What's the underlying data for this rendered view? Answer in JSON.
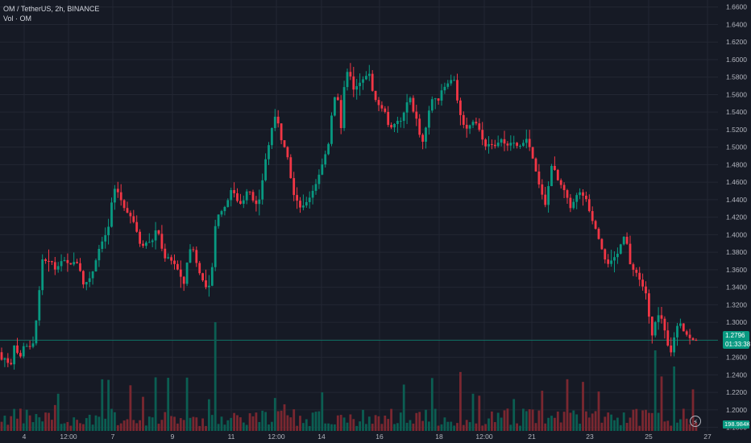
{
  "legend": {
    "symbol_line": "OM / TetherUS, 2h, BINANCE",
    "volume_line": "Vol · OM"
  },
  "price_tag": {
    "price": "1.2796",
    "countdown": "01:33:38"
  },
  "volume_tag": "198.984K",
  "colors": {
    "background": "#161a25",
    "grid": "#232733",
    "up": "#089981",
    "down": "#f23645",
    "up_volume": "#0b5e52",
    "down_volume": "#7a2730",
    "axis_text": "#b2b5be",
    "last_price_line": "#089981"
  },
  "icons": {
    "replay": "bolt-icon"
  },
  "chart_data": {
    "type": "candlestick",
    "symbol": "OM / TetherUS",
    "interval": "2h",
    "exchange": "BINANCE",
    "y_ticks": [
      "1.6600",
      "1.6400",
      "1.6200",
      "1.6000",
      "1.5800",
      "1.5600",
      "1.5400",
      "1.5200",
      "1.5000",
      "1.4800",
      "1.4600",
      "1.4400",
      "1.4200",
      "1.4000",
      "1.3800",
      "1.3600",
      "1.3400",
      "1.3200",
      "1.3000",
      "1.2800",
      "1.2600",
      "1.2400",
      "1.2200",
      "1.2000",
      "1.1800"
    ],
    "ylim": [
      1.176,
      1.668
    ],
    "x_ticks": [
      "4",
      "12:00",
      "7",
      "9",
      "11",
      "12:00",
      "14",
      "16",
      "18",
      "12:00",
      "21",
      "23",
      "25",
      "27"
    ],
    "last_price": 1.2796,
    "grid": true,
    "price_path": [
      [
        0,
        1.266
      ],
      [
        5,
        1.255
      ],
      [
        10,
        1.262
      ],
      [
        14,
        1.243
      ],
      [
        20,
        1.276
      ],
      [
        26,
        1.257
      ],
      [
        32,
        1.275
      ],
      [
        38,
        1.271
      ],
      [
        44,
        1.277
      ],
      [
        50,
        1.33
      ],
      [
        55,
        1.375
      ],
      [
        60,
        1.368
      ],
      [
        65,
        1.372
      ],
      [
        70,
        1.36
      ],
      [
        75,
        1.365
      ],
      [
        80,
        1.373
      ],
      [
        85,
        1.368
      ],
      [
        90,
        1.366
      ],
      [
        95,
        1.37
      ],
      [
        100,
        1.365
      ],
      [
        105,
        1.343
      ],
      [
        112,
        1.348
      ],
      [
        118,
        1.36
      ],
      [
        124,
        1.382
      ],
      [
        130,
        1.395
      ],
      [
        136,
        1.405
      ],
      [
        140,
        1.435
      ],
      [
        145,
        1.455
      ],
      [
        150,
        1.445
      ],
      [
        155,
        1.432
      ],
      [
        160,
        1.425
      ],
      [
        165,
        1.42
      ],
      [
        170,
        1.41
      ],
      [
        175,
        1.39
      ],
      [
        180,
        1.387
      ],
      [
        185,
        1.393
      ],
      [
        190,
        1.39
      ],
      [
        195,
        1.405
      ],
      [
        200,
        1.4
      ],
      [
        205,
        1.372
      ],
      [
        210,
        1.375
      ],
      [
        215,
        1.37
      ],
      [
        220,
        1.365
      ],
      [
        225,
        1.355
      ],
      [
        230,
        1.343
      ],
      [
        235,
        1.374
      ],
      [
        240,
        1.39
      ],
      [
        245,
        1.37
      ],
      [
        250,
        1.355
      ],
      [
        255,
        1.345
      ],
      [
        260,
        1.335
      ],
      [
        265,
        1.36
      ],
      [
        270,
        1.42
      ],
      [
        275,
        1.425
      ],
      [
        280,
        1.43
      ],
      [
        285,
        1.44
      ],
      [
        290,
        1.455
      ],
      [
        295,
        1.44
      ],
      [
        300,
        1.435
      ],
      [
        305,
        1.44
      ],
      [
        310,
        1.455
      ],
      [
        315,
        1.44
      ],
      [
        320,
        1.435
      ],
      [
        325,
        1.442
      ],
      [
        330,
        1.48
      ],
      [
        335,
        1.5
      ],
      [
        340,
        1.525
      ],
      [
        345,
        1.54
      ],
      [
        350,
        1.51
      ],
      [
        355,
        1.5
      ],
      [
        360,
        1.485
      ],
      [
        365,
        1.448
      ],
      [
        370,
        1.44
      ],
      [
        375,
        1.43
      ],
      [
        380,
        1.435
      ],
      [
        385,
        1.44
      ],
      [
        390,
        1.45
      ],
      [
        395,
        1.46
      ],
      [
        400,
        1.475
      ],
      [
        405,
        1.49
      ],
      [
        410,
        1.505
      ],
      [
        415,
        1.55
      ],
      [
        420,
        1.565
      ],
      [
        425,
        1.52
      ],
      [
        430,
        1.58
      ],
      [
        435,
        1.59
      ],
      [
        440,
        1.565
      ],
      [
        445,
        1.57
      ],
      [
        450,
        1.575
      ],
      [
        455,
        1.58
      ],
      [
        460,
        1.585
      ],
      [
        465,
        1.56
      ],
      [
        470,
        1.55
      ],
      [
        475,
        1.545
      ],
      [
        480,
        1.54
      ],
      [
        485,
        1.52
      ],
      [
        490,
        1.525
      ],
      [
        495,
        1.53
      ],
      [
        500,
        1.53
      ],
      [
        505,
        1.545
      ],
      [
        510,
        1.56
      ],
      [
        515,
        1.54
      ],
      [
        520,
        1.53
      ],
      [
        525,
        1.5
      ],
      [
        530,
        1.52
      ],
      [
        535,
        1.545
      ],
      [
        540,
        1.56
      ],
      [
        545,
        1.55
      ],
      [
        550,
        1.565
      ],
      [
        555,
        1.57
      ],
      [
        560,
        1.575
      ],
      [
        565,
        1.58
      ],
      [
        570,
        1.55
      ],
      [
        575,
        1.53
      ],
      [
        580,
        1.52
      ],
      [
        585,
        1.525
      ],
      [
        590,
        1.53
      ],
      [
        595,
        1.525
      ],
      [
        600,
        1.51
      ],
      [
        605,
        1.5
      ],
      [
        610,
        1.505
      ],
      [
        615,
        1.5
      ],
      [
        620,
        1.505
      ],
      [
        625,
        1.51
      ],
      [
        630,
        1.5
      ],
      [
        635,
        1.505
      ],
      [
        640,
        1.505
      ],
      [
        645,
        1.5
      ],
      [
        650,
        1.503
      ],
      [
        655,
        1.51
      ],
      [
        660,
        1.498
      ],
      [
        665,
        1.48
      ],
      [
        670,
        1.46
      ],
      [
        675,
        1.445
      ],
      [
        680,
        1.43
      ],
      [
        685,
        1.48
      ],
      [
        690,
        1.475
      ],
      [
        695,
        1.46
      ],
      [
        700,
        1.455
      ],
      [
        705,
        1.445
      ],
      [
        710,
        1.43
      ],
      [
        715,
        1.44
      ],
      [
        720,
        1.45
      ],
      [
        725,
        1.445
      ],
      [
        730,
        1.44
      ],
      [
        735,
        1.42
      ],
      [
        740,
        1.41
      ],
      [
        745,
        1.395
      ],
      [
        750,
        1.38
      ],
      [
        755,
        1.365
      ],
      [
        760,
        1.37
      ],
      [
        765,
        1.375
      ],
      [
        770,
        1.38
      ],
      [
        775,
        1.4
      ],
      [
        780,
        1.39
      ],
      [
        785,
        1.36
      ],
      [
        790,
        1.36
      ],
      [
        795,
        1.35
      ],
      [
        800,
        1.34
      ],
      [
        805,
        1.33
      ],
      [
        810,
        1.28
      ],
      [
        815,
        1.3
      ],
      [
        820,
        1.31
      ],
      [
        825,
        1.3
      ],
      [
        830,
        1.275
      ],
      [
        835,
        1.265
      ],
      [
        840,
        1.29
      ],
      [
        845,
        1.302
      ],
      [
        850,
        1.29
      ],
      [
        855,
        1.285
      ],
      [
        860,
        1.28
      ],
      [
        864,
        1.2796
      ]
    ]
  }
}
